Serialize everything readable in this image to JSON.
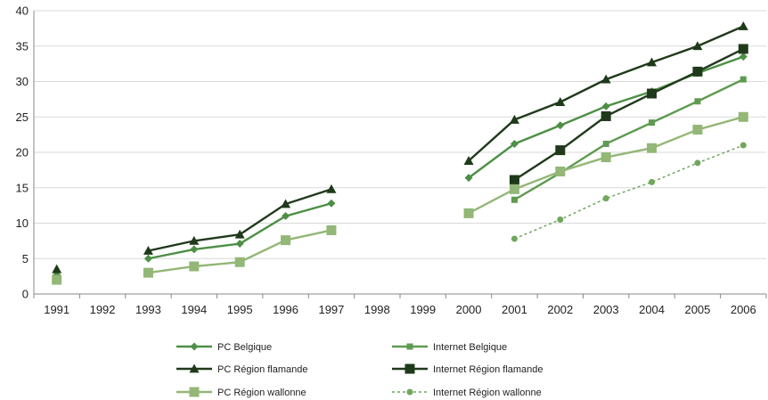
{
  "chart_data": {
    "type": "line",
    "title": "",
    "xlabel": "",
    "ylabel": "",
    "categories": [
      "1991",
      "1992",
      "1993",
      "1994",
      "1995",
      "1996",
      "1997",
      "1998",
      "1999",
      "2000",
      "2001",
      "2002",
      "2003",
      "2004",
      "2005",
      "2006"
    ],
    "ylim": [
      0,
      40
    ],
    "yticks": [
      "0",
      "5",
      "10",
      "15",
      "20",
      "25",
      "30",
      "35",
      "40"
    ],
    "grid": true,
    "legend_position": "bottom",
    "series": [
      {
        "name": "PC Belgique",
        "color": "#4d8f45",
        "marker": "diamond",
        "dash": false,
        "values": [
          2.7,
          null,
          5.0,
          6.3,
          7.1,
          11.0,
          12.8,
          null,
          null,
          16.4,
          21.2,
          23.8,
          26.5,
          28.6,
          31.2,
          33.5
        ]
      },
      {
        "name": "Internet Belgique",
        "color": "#5e9b50",
        "marker": "square-small",
        "dash": false,
        "values": [
          null,
          null,
          null,
          null,
          null,
          null,
          null,
          null,
          null,
          null,
          13.3,
          17.1,
          21.2,
          24.2,
          27.2,
          30.3
        ]
      },
      {
        "name": "PC Région flamande",
        "color": "#1f3a1a",
        "marker": "triangle",
        "dash": false,
        "values": [
          3.5,
          null,
          6.1,
          7.5,
          8.4,
          12.7,
          14.8,
          null,
          null,
          18.8,
          24.6,
          27.1,
          30.3,
          32.7,
          35.0,
          37.8
        ]
      },
      {
        "name": "Internet Région flamande",
        "color": "#1f3a1a",
        "marker": "square",
        "dash": false,
        "values": [
          null,
          null,
          null,
          null,
          null,
          null,
          null,
          null,
          null,
          null,
          16.1,
          20.3,
          25.1,
          28.3,
          31.4,
          34.6
        ]
      },
      {
        "name": "PC Région wallonne",
        "color": "#93b777",
        "marker": "square",
        "dash": false,
        "values": [
          2.0,
          null,
          3.0,
          3.9,
          4.5,
          7.6,
          9.0,
          null,
          null,
          11.4,
          14.8,
          17.3,
          19.3,
          20.6,
          23.2,
          25.0
        ]
      },
      {
        "name": "Internet Région wallonne",
        "color": "#6fa75c",
        "marker": "circle",
        "dash": true,
        "values": [
          null,
          null,
          null,
          null,
          null,
          null,
          null,
          null,
          null,
          null,
          7.8,
          10.5,
          13.5,
          15.8,
          18.5,
          21.0
        ]
      }
    ]
  }
}
